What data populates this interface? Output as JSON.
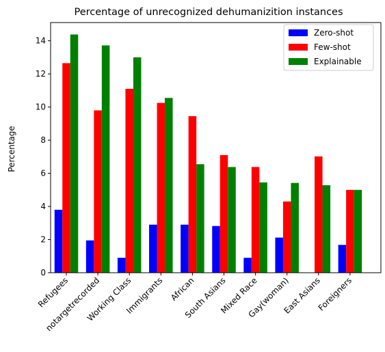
{
  "chart_data": {
    "type": "bar",
    "title": "Percentage of unrecognized dehumanizition instances",
    "xlabel": "",
    "ylabel": "Percentage",
    "ylim": [
      0,
      15.1
    ],
    "yticks": [
      0,
      2,
      4,
      6,
      8,
      10,
      12,
      14
    ],
    "grid": false,
    "legend_position": "top-right",
    "categories": [
      "Refugees",
      "notargetrecorded",
      "Working Class",
      "Immigrants",
      "African",
      "South Asians",
      "Mixed Race",
      "Gay(woman)",
      "East Asians",
      "Foreigners"
    ],
    "series": [
      {
        "name": "Zero-shot",
        "color": "#0000ff",
        "values": [
          3.8,
          1.95,
          0.9,
          2.9,
          2.9,
          2.82,
          0.9,
          2.12,
          0,
          1.68
        ]
      },
      {
        "name": "Few-shot",
        "color": "#ff0000",
        "values": [
          12.65,
          9.8,
          11.1,
          10.25,
          9.45,
          7.1,
          6.38,
          4.3,
          7.02,
          5.0
        ]
      },
      {
        "name": "Explainable",
        "color": "#008000",
        "values": [
          14.38,
          13.72,
          13.0,
          10.55,
          6.55,
          6.38,
          5.45,
          5.42,
          5.28,
          5.0
        ]
      }
    ]
  }
}
